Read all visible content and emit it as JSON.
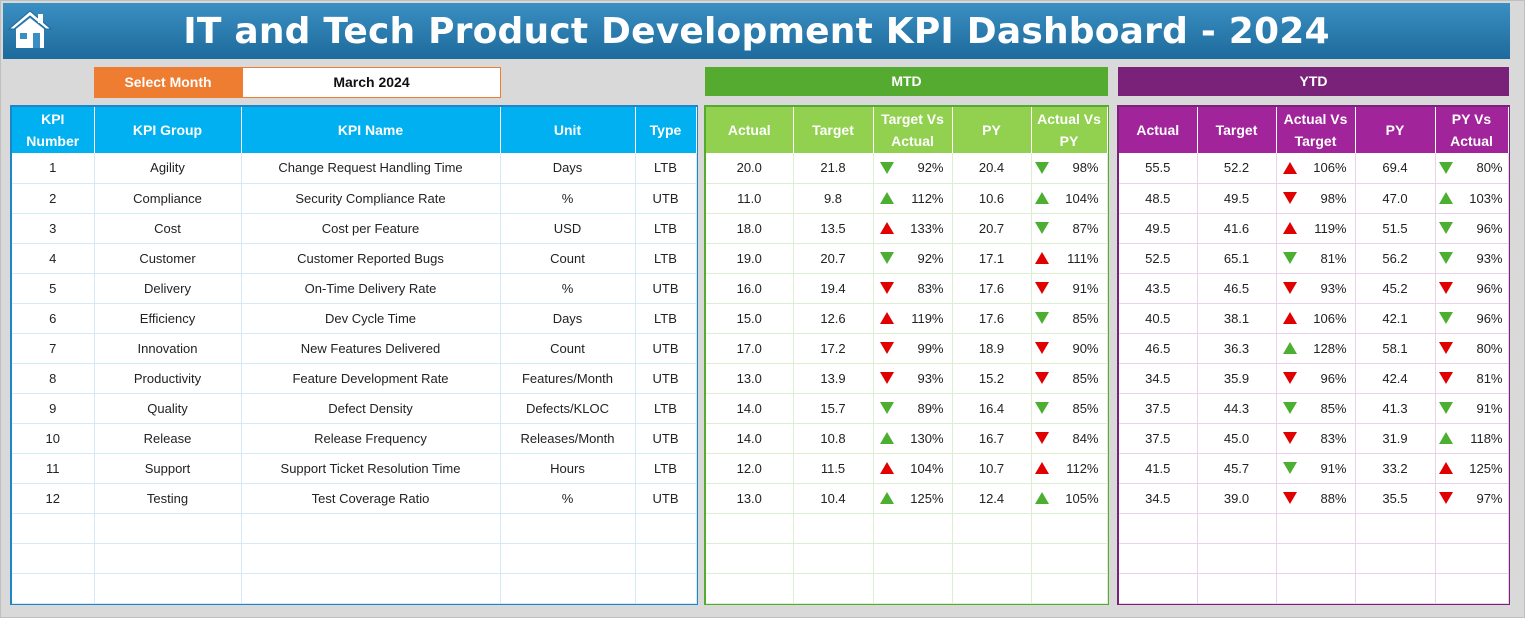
{
  "title": "IT and Tech Product Development KPI Dashboard - 2024",
  "month_selector": {
    "label": "Select Month",
    "value": "March 2024"
  },
  "sections": {
    "mtd": "MTD",
    "ytd": "YTD"
  },
  "kpi_columns": [
    "KPI Number",
    "KPI Group",
    "KPI Name",
    "Unit",
    "Type"
  ],
  "mtd_columns": [
    "Actual",
    "Target",
    "Target Vs Actual",
    "PY",
    "Actual Vs PY"
  ],
  "ytd_columns": [
    "Actual",
    "Target",
    "Actual Vs Target",
    "PY",
    "PY Vs Actual"
  ],
  "colors": {
    "title_bar": "#1e6a9c",
    "month_label": "#ee7d31",
    "kpi_header": "#00b0f0",
    "mtd_header": "#92d050",
    "ytd_header": "#a1249a",
    "arrow_green": "#4caf32",
    "arrow_red": "#e00000"
  },
  "home_icon": "home-icon",
  "empty_rows": 3,
  "rows": [
    {
      "num": "1",
      "group": "Agility",
      "name": "Change Request Handling Time",
      "unit": "Days",
      "type": "LTB",
      "mtd": {
        "actual": "20.0",
        "target": "21.8",
        "tva": {
          "pct": "92%",
          "arrow": "down-green"
        },
        "py": "20.4",
        "avp": {
          "pct": "98%",
          "arrow": "down-green"
        }
      },
      "ytd": {
        "actual": "55.5",
        "target": "52.2",
        "avt": {
          "pct": "106%",
          "arrow": "up-red"
        },
        "py": "69.4",
        "pva": {
          "pct": "80%",
          "arrow": "down-green"
        }
      }
    },
    {
      "num": "2",
      "group": "Compliance",
      "name": "Security Compliance Rate",
      "unit": "%",
      "type": "UTB",
      "mtd": {
        "actual": "11.0",
        "target": "9.8",
        "tva": {
          "pct": "112%",
          "arrow": "up-green"
        },
        "py": "10.6",
        "avp": {
          "pct": "104%",
          "arrow": "up-green"
        }
      },
      "ytd": {
        "actual": "48.5",
        "target": "49.5",
        "avt": {
          "pct": "98%",
          "arrow": "down-red"
        },
        "py": "47.0",
        "pva": {
          "pct": "103%",
          "arrow": "up-green"
        }
      }
    },
    {
      "num": "3",
      "group": "Cost",
      "name": "Cost per Feature",
      "unit": "USD",
      "type": "LTB",
      "mtd": {
        "actual": "18.0",
        "target": "13.5",
        "tva": {
          "pct": "133%",
          "arrow": "up-red"
        },
        "py": "20.7",
        "avp": {
          "pct": "87%",
          "arrow": "down-green"
        }
      },
      "ytd": {
        "actual": "49.5",
        "target": "41.6",
        "avt": {
          "pct": "119%",
          "arrow": "up-red"
        },
        "py": "51.5",
        "pva": {
          "pct": "96%",
          "arrow": "down-green"
        }
      }
    },
    {
      "num": "4",
      "group": "Customer",
      "name": "Customer Reported Bugs",
      "unit": "Count",
      "type": "LTB",
      "mtd": {
        "actual": "19.0",
        "target": "20.7",
        "tva": {
          "pct": "92%",
          "arrow": "down-green"
        },
        "py": "17.1",
        "avp": {
          "pct": "111%",
          "arrow": "up-red"
        }
      },
      "ytd": {
        "actual": "52.5",
        "target": "65.1",
        "avt": {
          "pct": "81%",
          "arrow": "down-green"
        },
        "py": "56.2",
        "pva": {
          "pct": "93%",
          "arrow": "down-green"
        }
      }
    },
    {
      "num": "5",
      "group": "Delivery",
      "name": "On-Time Delivery Rate",
      "unit": "%",
      "type": "UTB",
      "mtd": {
        "actual": "16.0",
        "target": "19.4",
        "tva": {
          "pct": "83%",
          "arrow": "down-red"
        },
        "py": "17.6",
        "avp": {
          "pct": "91%",
          "arrow": "down-red"
        }
      },
      "ytd": {
        "actual": "43.5",
        "target": "46.5",
        "avt": {
          "pct": "93%",
          "arrow": "down-red"
        },
        "py": "45.2",
        "pva": {
          "pct": "96%",
          "arrow": "down-red"
        }
      }
    },
    {
      "num": "6",
      "group": "Efficiency",
      "name": "Dev Cycle Time",
      "unit": "Days",
      "type": "LTB",
      "mtd": {
        "actual": "15.0",
        "target": "12.6",
        "tva": {
          "pct": "119%",
          "arrow": "up-red"
        },
        "py": "17.6",
        "avp": {
          "pct": "85%",
          "arrow": "down-green"
        }
      },
      "ytd": {
        "actual": "40.5",
        "target": "38.1",
        "avt": {
          "pct": "106%",
          "arrow": "up-red"
        },
        "py": "42.1",
        "pva": {
          "pct": "96%",
          "arrow": "down-green"
        }
      }
    },
    {
      "num": "7",
      "group": "Innovation",
      "name": "New Features Delivered",
      "unit": "Count",
      "type": "UTB",
      "mtd": {
        "actual": "17.0",
        "target": "17.2",
        "tva": {
          "pct": "99%",
          "arrow": "down-red"
        },
        "py": "18.9",
        "avp": {
          "pct": "90%",
          "arrow": "down-red"
        }
      },
      "ytd": {
        "actual": "46.5",
        "target": "36.3",
        "avt": {
          "pct": "128%",
          "arrow": "up-green"
        },
        "py": "58.1",
        "pva": {
          "pct": "80%",
          "arrow": "down-red"
        }
      }
    },
    {
      "num": "8",
      "group": "Productivity",
      "name": "Feature Development Rate",
      "unit": "Features/Month",
      "type": "UTB",
      "mtd": {
        "actual": "13.0",
        "target": "13.9",
        "tva": {
          "pct": "93%",
          "arrow": "down-red"
        },
        "py": "15.2",
        "avp": {
          "pct": "85%",
          "arrow": "down-red"
        }
      },
      "ytd": {
        "actual": "34.5",
        "target": "35.9",
        "avt": {
          "pct": "96%",
          "arrow": "down-red"
        },
        "py": "42.4",
        "pva": {
          "pct": "81%",
          "arrow": "down-red"
        }
      }
    },
    {
      "num": "9",
      "group": "Quality",
      "name": "Defect Density",
      "unit": "Defects/KLOC",
      "type": "LTB",
      "mtd": {
        "actual": "14.0",
        "target": "15.7",
        "tva": {
          "pct": "89%",
          "arrow": "down-green"
        },
        "py": "16.4",
        "avp": {
          "pct": "85%",
          "arrow": "down-green"
        }
      },
      "ytd": {
        "actual": "37.5",
        "target": "44.3",
        "avt": {
          "pct": "85%",
          "arrow": "down-green"
        },
        "py": "41.3",
        "pva": {
          "pct": "91%",
          "arrow": "down-green"
        }
      }
    },
    {
      "num": "10",
      "group": "Release",
      "name": "Release Frequency",
      "unit": "Releases/Month",
      "type": "UTB",
      "mtd": {
        "actual": "14.0",
        "target": "10.8",
        "tva": {
          "pct": "130%",
          "arrow": "up-green"
        },
        "py": "16.7",
        "avp": {
          "pct": "84%",
          "arrow": "down-red"
        }
      },
      "ytd": {
        "actual": "37.5",
        "target": "45.0",
        "avt": {
          "pct": "83%",
          "arrow": "down-red"
        },
        "py": "31.9",
        "pva": {
          "pct": "118%",
          "arrow": "up-green"
        }
      }
    },
    {
      "num": "11",
      "group": "Support",
      "name": "Support Ticket Resolution Time",
      "unit": "Hours",
      "type": "LTB",
      "mtd": {
        "actual": "12.0",
        "target": "11.5",
        "tva": {
          "pct": "104%",
          "arrow": "up-red"
        },
        "py": "10.7",
        "avp": {
          "pct": "112%",
          "arrow": "up-red"
        }
      },
      "ytd": {
        "actual": "41.5",
        "target": "45.7",
        "avt": {
          "pct": "91%",
          "arrow": "down-green"
        },
        "py": "33.2",
        "pva": {
          "pct": "125%",
          "arrow": "up-red"
        }
      }
    },
    {
      "num": "12",
      "group": "Testing",
      "name": "Test Coverage Ratio",
      "unit": "%",
      "type": "UTB",
      "mtd": {
        "actual": "13.0",
        "target": "10.4",
        "tva": {
          "pct": "125%",
          "arrow": "up-green"
        },
        "py": "12.4",
        "avp": {
          "pct": "105%",
          "arrow": "up-green"
        }
      },
      "ytd": {
        "actual": "34.5",
        "target": "39.0",
        "avt": {
          "pct": "88%",
          "arrow": "down-red"
        },
        "py": "35.5",
        "pva": {
          "pct": "97%",
          "arrow": "down-red"
        }
      }
    }
  ]
}
